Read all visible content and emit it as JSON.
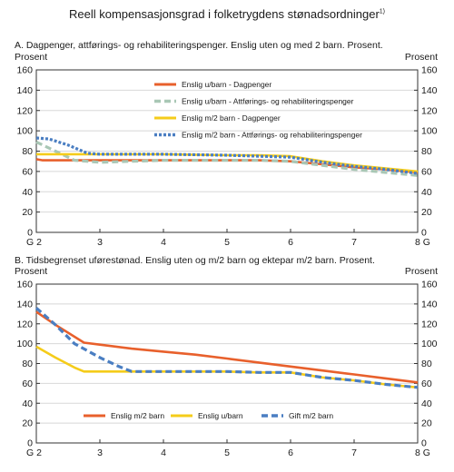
{
  "figure_title": "Reell kompensasjonsgrad i folketrygdens stønadsordninger",
  "figure_footnote_marker": "1)",
  "colors": {
    "orange": "#E8602C",
    "yellow": "#F5CC1A",
    "grey_green": "#A9C7B5",
    "blue": "#4A7EC2",
    "grid": "#d8d8d8",
    "axis": "#333333"
  },
  "chart_data": [
    {
      "type": "line",
      "panel_title": "A.  Dagpenger, attførings- og rehabiliteringspenger. Enslig uten og med 2 barn.  Prosent.",
      "ylabel_left": "Prosent",
      "ylabel_right": "Prosent",
      "x_tick_labels": [
        "G 2",
        "3",
        "4",
        "5",
        "6",
        "7",
        "8 G"
      ],
      "xlim": [
        2,
        8
      ],
      "ylim": [
        0,
        160
      ],
      "yticks": [
        0,
        20,
        40,
        60,
        80,
        100,
        120,
        140,
        160
      ],
      "grid": "horizontal",
      "legend_position": "upper-center, stacked vertically",
      "series": [
        {
          "name": "Enslig u/barn - Dagpenger",
          "color": "orange",
          "dash": "solid",
          "x": [
            2,
            2.1,
            2.4,
            3,
            4,
            5,
            5.5,
            6,
            6.5,
            7,
            7.5,
            8
          ],
          "y": [
            72,
            71,
            71,
            71,
            71,
            71,
            71,
            70,
            67,
            64,
            62,
            59
          ]
        },
        {
          "name": "Enslig u/barn - Attførings- og rehabiliteringspenger",
          "color": "grey_green",
          "dash": "dashed",
          "x": [
            2,
            2.3,
            2.6,
            3,
            4,
            5,
            5.5,
            6,
            6.5,
            7,
            7.5,
            8
          ],
          "y": [
            89,
            80,
            71,
            69,
            71,
            71,
            71,
            70,
            66,
            62,
            59,
            56
          ]
        },
        {
          "name": "Enslig m/2 barn - Dagpenger",
          "color": "yellow",
          "dash": "solid",
          "x": [
            2,
            2.5,
            3,
            4,
            5,
            5.5,
            6,
            6.5,
            7,
            7.5,
            8
          ],
          "y": [
            77,
            77,
            77,
            77,
            76,
            76,
            75,
            70,
            66,
            63,
            60
          ]
        },
        {
          "name": "Enslig m/2 barn - Attførings- og rehabiliteringspenger",
          "color": "blue",
          "dash": "dotted",
          "x": [
            2,
            2.2,
            2.5,
            2.8,
            3,
            4,
            5,
            5.5,
            6,
            6.5,
            7,
            7.5,
            8
          ],
          "y": [
            93,
            92,
            86,
            78,
            77,
            77,
            76,
            75,
            74,
            69,
            65,
            62,
            58
          ]
        }
      ]
    },
    {
      "type": "line",
      "panel_title": "B.  Tidsbegrenset uførestønad. Enslig uten og m/2 barn og ektepar m/2 barn. Prosent.",
      "ylabel_left": "Prosent",
      "ylabel_right": "Prosent",
      "x_tick_labels": [
        "G 2",
        "3",
        "4",
        "5",
        "6",
        "7",
        "8 G"
      ],
      "xlim": [
        2,
        8
      ],
      "ylim": [
        0,
        160
      ],
      "yticks": [
        0,
        20,
        40,
        60,
        80,
        100,
        120,
        140,
        160
      ],
      "grid": "horizontal",
      "legend_position": "bottom-center, single row",
      "series": [
        {
          "name": "Enslig m/2 barn",
          "color": "orange",
          "dash": "solid",
          "x": [
            2,
            2.3,
            2.75,
            3,
            3.5,
            4,
            4.5,
            5,
            5.5,
            6,
            6.5,
            7,
            7.5,
            8
          ],
          "y": [
            132,
            119,
            101,
            99,
            95,
            92,
            89,
            85,
            81,
            77,
            73,
            69,
            65,
            61
          ]
        },
        {
          "name": "Enslig u/barn",
          "color": "yellow",
          "dash": "solid",
          "x": [
            2,
            2.3,
            2.6,
            2.75,
            3,
            3.5,
            4,
            5,
            5.5,
            6,
            6.5,
            7,
            7.5,
            8
          ],
          "y": [
            97,
            86,
            76,
            72,
            72,
            72,
            72,
            72,
            71,
            71,
            66,
            63,
            59,
            56
          ]
        },
        {
          "name": "Gift m/2 barn",
          "color": "blue",
          "dash": "dashed",
          "x": [
            2,
            2.3,
            2.6,
            3,
            3.3,
            3.5,
            4,
            5,
            5.5,
            6,
            6.5,
            7,
            7.5,
            8
          ],
          "y": [
            136,
            119,
            100,
            86,
            77,
            72,
            72,
            72,
            71,
            71,
            66,
            63,
            59,
            56
          ]
        }
      ]
    }
  ]
}
